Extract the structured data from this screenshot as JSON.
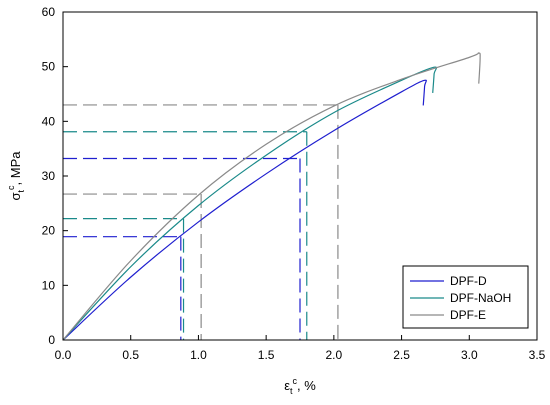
{
  "chart_data": {
    "type": "line",
    "xlabel": {
      "base": "ε",
      "sub": "t",
      "sup": "c",
      "rest": ", %"
    },
    "ylabel": {
      "base": "σ",
      "sub": "t",
      "sup": "c",
      "rest": ", MPa"
    },
    "xlim": [
      0,
      3.5
    ],
    "ylim": [
      0,
      60
    ],
    "xticks": [
      0,
      0.5,
      1.0,
      1.5,
      2.0,
      2.5,
      3.0,
      3.5
    ],
    "xtick_labels": [
      "0.0",
      "0.5",
      "1.0",
      "1.5",
      "2.0",
      "2.5",
      "3.0",
      "3.5"
    ],
    "yticks": [
      0,
      10,
      20,
      30,
      40,
      50,
      60
    ],
    "ytick_labels": [
      "0",
      "10",
      "20",
      "30",
      "40",
      "50",
      "60"
    ],
    "grid": false,
    "legend_position": "bottom-right",
    "series": [
      {
        "name": "DPF-D",
        "color": "#1f1fcf",
        "x": [
          0,
          0.5,
          1.0,
          1.5,
          2.0,
          2.5,
          2.67,
          2.67,
          2.66
        ],
        "y": [
          0,
          11.5,
          21.6,
          30.4,
          38.3,
          45.4,
          47.5,
          46.4,
          42.9
        ],
        "dashed_markers": [
          {
            "x": 0.87,
            "y": 18.9
          },
          {
            "x": 1.75,
            "y": 33.2
          }
        ]
      },
      {
        "name": "DPF-NaOH",
        "color": "#1a8a8a",
        "x": [
          0,
          0.5,
          1.0,
          1.5,
          2.0,
          2.5,
          2.74,
          2.74,
          2.73
        ],
        "y": [
          0,
          13.4,
          24.6,
          33.8,
          41.6,
          47.5,
          49.9,
          48.6,
          45.2
        ],
        "dashed_markers": [
          {
            "x": 0.89,
            "y": 22.2
          },
          {
            "x": 1.8,
            "y": 38.1
          }
        ]
      },
      {
        "name": "DPF-E",
        "color": "#8a8a8a",
        "x": [
          0,
          0.5,
          1.0,
          1.5,
          2.0,
          2.5,
          3.0,
          3.07,
          3.08,
          3.07
        ],
        "y": [
          0,
          14.5,
          26.5,
          35.8,
          42.8,
          47.7,
          51.7,
          52.5,
          51.5,
          46.9
        ],
        "dashed_markers": [
          {
            "x": 1.02,
            "y": 26.7
          },
          {
            "x": 2.03,
            "y": 43.0
          }
        ]
      }
    ]
  }
}
